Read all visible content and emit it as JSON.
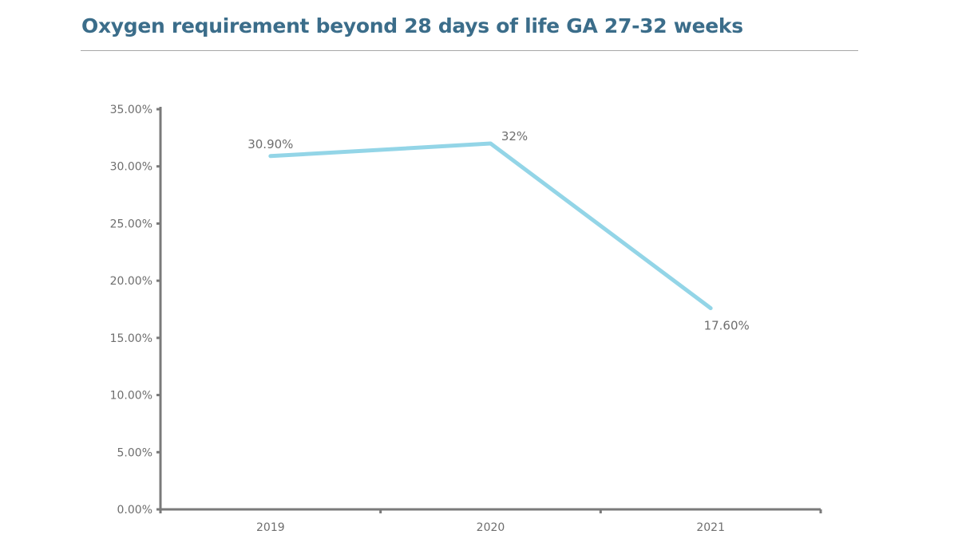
{
  "chart_data": {
    "type": "line",
    "title": "Oxygen requirement beyond 28 days of life GA 27-32 weeks",
    "categories": [
      "2019",
      "2020",
      "2021"
    ],
    "values": [
      30.9,
      32,
      17.6
    ],
    "data_labels": [
      "30.90%",
      "32%",
      "17.60%"
    ],
    "yticks": [
      "0.00%",
      "5.00%",
      "10.00%",
      "15.00%",
      "20.00%",
      "25.00%",
      "30.00%",
      "35.00%"
    ],
    "ylim": [
      0,
      35
    ],
    "xlabel": "",
    "ylabel": "",
    "grid": false,
    "legend": "none",
    "colors": {
      "line": "#93d5e7",
      "title": "#3b6d8a",
      "axis": "#7a7a7a"
    }
  }
}
